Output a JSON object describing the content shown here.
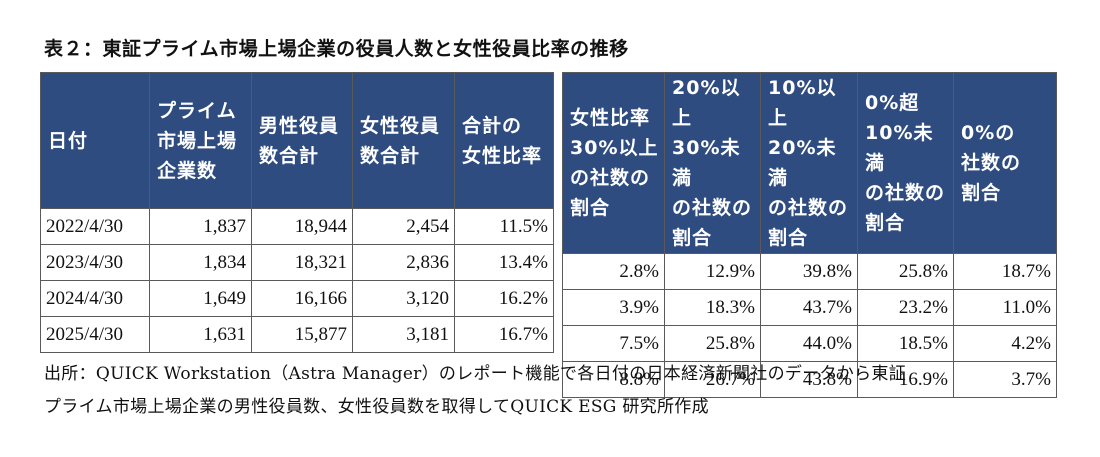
{
  "title": "表２：東証プライム市場上場企業の役員人数と女性役員比率の推移",
  "headers_left": [
    "日付",
    "プライム\n市場上場\n企業数",
    "男性役員\n数合計",
    "女性役員\n数合計",
    "合計の\n女性比率"
  ],
  "headers_right": [
    "女性比率\n30%以上\nの社数の\n割合",
    "20%以上\n30%未満\nの社数の\n割合",
    "10%以上\n20%未満\nの社数の\n割合",
    "0%超\n10%未満\nの社数の\n割合",
    "0%の\n社数の\n割合"
  ],
  "rows": [
    {
      "date": "2022/4/30",
      "companies": "1,837",
      "male": "18,944",
      "female": "2,454",
      "ratio": "11.5%",
      "r30": "2.8%",
      "r20": "12.9%",
      "r10": "39.8%",
      "r0p": "25.8%",
      "r0": "18.7%"
    },
    {
      "date": "2023/4/30",
      "companies": "1,834",
      "male": "18,321",
      "female": "2,836",
      "ratio": "13.4%",
      "r30": "3.9%",
      "r20": "18.3%",
      "r10": "43.7%",
      "r0p": "23.2%",
      "r0": "11.0%"
    },
    {
      "date": "2024/4/30",
      "companies": "1,649",
      "male": "16,166",
      "female": "3,120",
      "ratio": "16.2%",
      "r30": "7.5%",
      "r20": "25.8%",
      "r10": "44.0%",
      "r0p": "18.5%",
      "r0": "4.2%"
    },
    {
      "date": "2025/4/30",
      "companies": "1,631",
      "male": "15,877",
      "female": "3,181",
      "ratio": "16.7%",
      "r30": "8.8%",
      "r20": "26.7%",
      "r10": "43.8%",
      "r0p": "16.9%",
      "r0": "3.7%"
    }
  ],
  "source": {
    "line1": "出所：QUICK Workstation（Astra Manager）のレポート機能で各日付の日本経済新聞社のデータから東証",
    "line2": "プライム市場上場企業の男性役員数、女性役員数を取得してQUICK ESG 研究所作成"
  },
  "colors": {
    "header_bg": "#2f4c80",
    "header_text": "#ffffff",
    "border": "#5a5a5a"
  }
}
